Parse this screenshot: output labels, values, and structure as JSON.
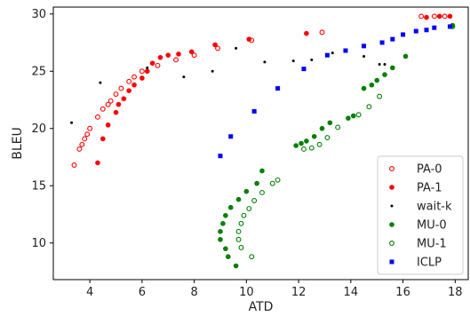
{
  "chart_data": {
    "type": "scatter",
    "xlabel": "ATD",
    "ylabel": "BLEU",
    "xlim": [
      2.6,
      18.5
    ],
    "ylim": [
      6.8,
      30.6
    ],
    "xticks": [
      "4",
      "6",
      "8",
      "10",
      "12",
      "14",
      "16",
      "18"
    ],
    "yticks": [
      "10",
      "15",
      "20",
      "25",
      "30"
    ],
    "legend_position": "lower-right",
    "grid": false,
    "series": [
      {
        "name": "PA-0",
        "color": "#ff0000",
        "marker": "circle-open",
        "points": [
          [
            3.4,
            16.8
          ],
          [
            3.6,
            18.2
          ],
          [
            3.7,
            18.6
          ],
          [
            3.8,
            19.1
          ],
          [
            3.9,
            19.5
          ],
          [
            4.0,
            20.0
          ],
          [
            4.3,
            21.0
          ],
          [
            4.5,
            21.7
          ],
          [
            4.7,
            22.1
          ],
          [
            4.8,
            22.4
          ],
          [
            5.0,
            23.0
          ],
          [
            5.2,
            23.5
          ],
          [
            5.5,
            24.1
          ],
          [
            5.7,
            24.5
          ],
          [
            6.0,
            25.0
          ],
          [
            6.6,
            25.5
          ],
          [
            7.3,
            26.0
          ],
          [
            8.0,
            26.4
          ],
          [
            8.9,
            27.0
          ],
          [
            10.2,
            27.7
          ],
          [
            12.9,
            28.4
          ],
          [
            16.7,
            29.8
          ],
          [
            17.2,
            29.8
          ],
          [
            17.6,
            29.8
          ]
        ]
      },
      {
        "name": "PA-1",
        "color": "#ff0000",
        "marker": "circle-filled",
        "points": [
          [
            4.3,
            17.0
          ],
          [
            4.5,
            19.1
          ],
          [
            4.7,
            20.3
          ],
          [
            5.0,
            21.4
          ],
          [
            5.1,
            22.1
          ],
          [
            5.3,
            22.6
          ],
          [
            5.5,
            23.3
          ],
          [
            5.7,
            23.8
          ],
          [
            6.0,
            24.4
          ],
          [
            6.2,
            25.0
          ],
          [
            6.4,
            25.7
          ],
          [
            6.7,
            26.2
          ],
          [
            7.0,
            26.4
          ],
          [
            7.4,
            26.5
          ],
          [
            7.9,
            26.7
          ],
          [
            8.8,
            27.3
          ],
          [
            10.1,
            27.8
          ],
          [
            12.3,
            28.3
          ],
          [
            16.9,
            29.7
          ],
          [
            17.4,
            29.8
          ],
          [
            17.8,
            29.8
          ]
        ]
      },
      {
        "name": "wait-k",
        "color": "#000000",
        "marker": "dot",
        "points": [
          [
            3.3,
            20.5
          ],
          [
            4.4,
            24.0
          ],
          [
            6.2,
            25.3
          ],
          [
            7.6,
            24.5
          ],
          [
            8.7,
            25.0
          ],
          [
            9.6,
            27.0
          ],
          [
            10.7,
            25.8
          ],
          [
            11.8,
            25.9
          ],
          [
            12.5,
            26.0
          ],
          [
            13.3,
            26.6
          ],
          [
            14.5,
            26.3
          ],
          [
            15.1,
            25.6
          ],
          [
            15.3,
            25.6
          ]
        ]
      },
      {
        "name": "MU-0",
        "color": "#008000",
        "marker": "circle-filled",
        "points": [
          [
            9.6,
            8.0
          ],
          [
            9.3,
            8.8
          ],
          [
            9.2,
            9.5
          ],
          [
            9.0,
            10.3
          ],
          [
            9.0,
            11.0
          ],
          [
            9.1,
            11.7
          ],
          [
            9.2,
            12.4
          ],
          [
            9.4,
            13.1
          ],
          [
            9.7,
            13.8
          ],
          [
            10.0,
            14.5
          ],
          [
            10.4,
            15.2
          ],
          [
            10.6,
            16.3
          ],
          [
            11.9,
            18.5
          ],
          [
            12.1,
            18.7
          ],
          [
            12.3,
            18.9
          ],
          [
            12.6,
            19.3
          ],
          [
            12.9,
            20.0
          ],
          [
            13.2,
            20.5
          ],
          [
            13.9,
            20.9
          ],
          [
            14.1,
            21.1
          ],
          [
            14.5,
            23.5
          ],
          [
            14.8,
            23.8
          ],
          [
            15.0,
            24.2
          ],
          [
            15.3,
            24.7
          ],
          [
            15.6,
            25.3
          ],
          [
            16.1,
            26.3
          ],
          [
            17.9,
            29.0
          ]
        ]
      },
      {
        "name": "MU-1",
        "color": "#008000",
        "marker": "circle-open",
        "points": [
          [
            10.2,
            8.8
          ],
          [
            9.8,
            9.6
          ],
          [
            9.7,
            10.3
          ],
          [
            9.7,
            11.0
          ],
          [
            9.8,
            11.7
          ],
          [
            9.9,
            12.4
          ],
          [
            10.1,
            13.0
          ],
          [
            10.3,
            13.7
          ],
          [
            10.6,
            14.4
          ],
          [
            11.0,
            15.2
          ],
          [
            11.2,
            15.5
          ],
          [
            12.2,
            18.2
          ],
          [
            12.5,
            18.3
          ],
          [
            12.8,
            18.6
          ],
          [
            13.1,
            19.2
          ],
          [
            13.5,
            20.1
          ],
          [
            14.3,
            21.2
          ],
          [
            14.7,
            21.9
          ],
          [
            15.1,
            22.8
          ],
          [
            17.9,
            28.9
          ]
        ]
      },
      {
        "name": "ICLP",
        "color": "#0000ff",
        "marker": "square",
        "points": [
          [
            9.0,
            17.6
          ],
          [
            9.4,
            19.3
          ],
          [
            10.3,
            21.5
          ],
          [
            11.2,
            23.5
          ],
          [
            12.2,
            25.2
          ],
          [
            13.1,
            26.4
          ],
          [
            13.8,
            26.8
          ],
          [
            14.5,
            27.2
          ],
          [
            15.2,
            27.5
          ],
          [
            15.6,
            27.8
          ],
          [
            16.0,
            28.2
          ],
          [
            16.5,
            28.5
          ],
          [
            16.9,
            28.6
          ],
          [
            17.2,
            28.8
          ],
          [
            17.8,
            28.9
          ]
        ]
      }
    ]
  }
}
